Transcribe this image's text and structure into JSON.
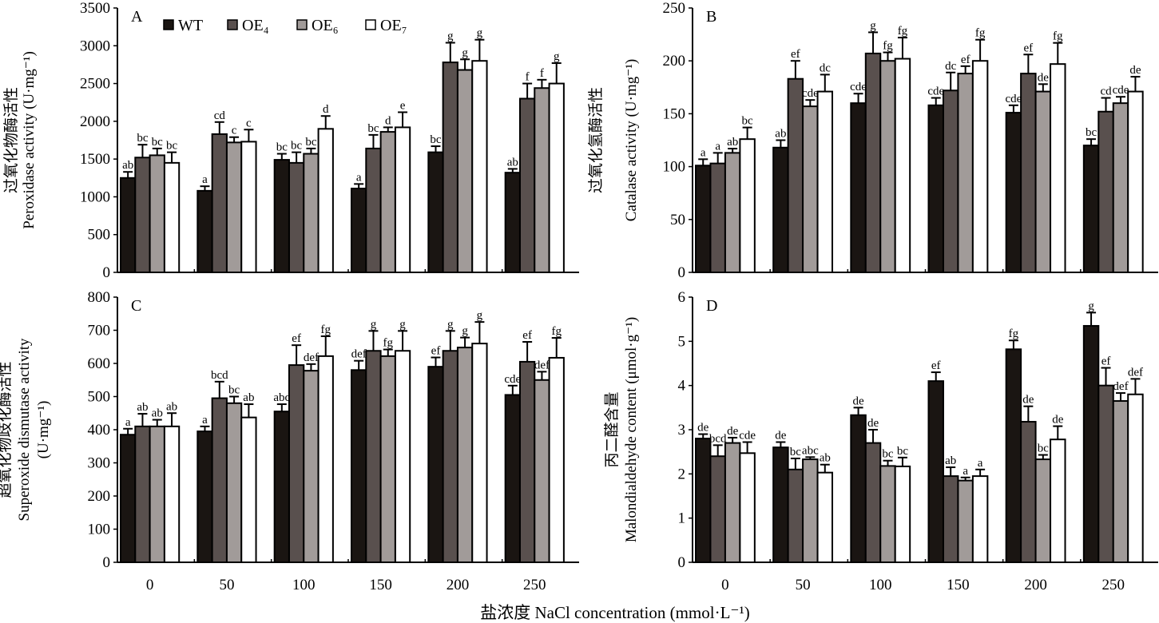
{
  "chart_data": {
    "x_title": "盐浓度 NaCl concentration (mmol·L⁻¹)",
    "legend": {
      "placement": "top-left (panel A)"
    },
    "panels": [
      {
        "id": "A",
        "type": "bar",
        "ylabel_cn": "过氧化物酶活性",
        "ylabel_en": "Peroxidase activity (U·mg⁻¹)",
        "ylim": [
          0,
          3500
        ],
        "yticks": [
          0,
          500,
          1000,
          1500,
          2000,
          2500,
          3000,
          3500
        ],
        "categories": [
          "0",
          "50",
          "100",
          "150",
          "200",
          "250"
        ],
        "series": [
          {
            "name": "WT",
            "color": "#1a1512",
            "values": [
              1250,
              1080,
              1490,
              1110,
              1590,
              1320
            ],
            "errors": [
              80,
              60,
              80,
              60,
              80,
              50
            ],
            "letters": [
              "ab",
              "a",
              "bc",
              "a",
              "bc",
              "ab"
            ]
          },
          {
            "name": "OE₄",
            "color": "#59504e",
            "values": [
              1520,
              1830,
              1450,
              1640,
              2780,
              2300
            ],
            "errors": [
              170,
              160,
              140,
              180,
              260,
              200
            ],
            "letters": [
              "bc",
              "cd",
              "bc",
              "bc",
              "g",
              "f"
            ]
          },
          {
            "name": "OE₆",
            "color": "#a19b99",
            "values": [
              1550,
              1720,
              1570,
              1860,
              2680,
              2440
            ],
            "errors": [
              90,
              70,
              70,
              60,
              140,
              110
            ],
            "letters": [
              "bc",
              "c",
              "bc",
              "d",
              "g",
              "f"
            ]
          },
          {
            "name": "OE₇",
            "color": "#ffffff",
            "values": [
              1450,
              1730,
              1900,
              1920,
              2800,
              2500
            ],
            "errors": [
              140,
              160,
              170,
              200,
              280,
              270
            ],
            "letters": [
              "bc",
              "c",
              "d",
              "e",
              "g",
              "g"
            ]
          }
        ]
      },
      {
        "id": "B",
        "type": "bar",
        "ylabel_cn": "过氧化氢酶活性",
        "ylabel_en": "Catalase activity (U·mg⁻¹)",
        "ylim": [
          0,
          250
        ],
        "yticks": [
          0,
          50,
          100,
          150,
          200,
          250
        ],
        "categories": [
          "0",
          "50",
          "100",
          "150",
          "200",
          "250"
        ],
        "series": [
          {
            "name": "WT",
            "color": "#1a1512",
            "values": [
              101,
              118,
              160,
              158,
              151,
              120
            ],
            "errors": [
              6,
              7,
              9,
              7,
              7,
              6
            ],
            "letters": [
              "a",
              "ab",
              "cde",
              "cde",
              "cde",
              "bc"
            ]
          },
          {
            "name": "OE₄",
            "color": "#59504e",
            "values": [
              103,
              183,
              207,
              172,
              188,
              152
            ],
            "errors": [
              10,
              17,
              20,
              17,
              18,
              13
            ],
            "letters": [
              "a",
              "ef",
              "g",
              "dc",
              "ef",
              "cd"
            ]
          },
          {
            "name": "OE₆",
            "color": "#a19b99",
            "values": [
              113,
              157,
              200,
              188,
              171,
              160
            ],
            "errors": [
              4,
              6,
              8,
              7,
              7,
              6
            ],
            "letters": [
              "ab",
              "cde",
              "fg",
              "ef",
              "de",
              "cde"
            ]
          },
          {
            "name": "OE₇",
            "color": "#ffffff",
            "values": [
              126,
              171,
              202,
              200,
              197,
              171
            ],
            "errors": [
              11,
              16,
              20,
              20,
              20,
              14
            ],
            "letters": [
              "bc",
              "dc",
              "fg",
              "fg",
              "fg",
              "de"
            ]
          }
        ]
      },
      {
        "id": "C",
        "type": "bar",
        "ylabel_cn": "超氧化物歧化酶活性",
        "ylabel_en": "Superoxide dismutase activity",
        "ylabel_unit": "(U·mg⁻¹)",
        "ylim": [
          0,
          800
        ],
        "yticks": [
          0,
          100,
          200,
          300,
          400,
          500,
          600,
          700,
          800
        ],
        "categories": [
          "0",
          "50",
          "100",
          "150",
          "200",
          "250"
        ],
        "series": [
          {
            "name": "WT",
            "color": "#1a1512",
            "values": [
              385,
              395,
              455,
              580,
              590,
              505
            ],
            "errors": [
              18,
              15,
              22,
              28,
              28,
              28
            ],
            "letters": [
              "a",
              "a",
              "abc",
              "def",
              "ef",
              "cde"
            ]
          },
          {
            "name": "OE₄",
            "color": "#59504e",
            "values": [
              410,
              495,
              595,
              638,
              638,
              605
            ],
            "errors": [
              38,
              50,
              60,
              60,
              60,
              60
            ],
            "letters": [
              "ab",
              "bcd",
              "ef",
              "g",
              "g",
              "ef"
            ]
          },
          {
            "name": "OE₆",
            "color": "#a19b99",
            "values": [
              410,
              480,
              578,
              622,
              648,
              550
            ],
            "errors": [
              20,
              20,
              20,
              20,
              30,
              25
            ],
            "letters": [
              "ab",
              "bc",
              "def",
              "fg",
              "g",
              "def"
            ]
          },
          {
            "name": "OE₇",
            "color": "#ffffff",
            "values": [
              410,
              437,
              622,
              638,
              660,
              617
            ],
            "errors": [
              40,
              40,
              60,
              60,
              65,
              60
            ],
            "letters": [
              "ab",
              "ab",
              "fg",
              "g",
              "g",
              "fg"
            ]
          }
        ]
      },
      {
        "id": "D",
        "type": "bar",
        "ylabel_cn": "丙二醛含量",
        "ylabel_en": "Malondialdehyde content (μmol·g⁻¹)",
        "ylim": [
          0,
          6
        ],
        "yticks": [
          0,
          1,
          2,
          3,
          4,
          5,
          6
        ],
        "categories": [
          "0",
          "50",
          "100",
          "150",
          "200",
          "250"
        ],
        "series": [
          {
            "name": "WT",
            "color": "#1a1512",
            "values": [
              2.8,
              2.6,
              3.33,
              4.1,
              4.82,
              5.35
            ],
            "errors": [
              0.1,
              0.12,
              0.17,
              0.2,
              0.2,
              0.3
            ],
            "letters": [
              "de",
              "de",
              "de",
              "ef",
              "fg",
              "g"
            ]
          },
          {
            "name": "OE₄",
            "color": "#59504e",
            "values": [
              2.4,
              2.1,
              2.7,
              1.95,
              3.18,
              4.0
            ],
            "errors": [
              0.25,
              0.25,
              0.3,
              0.2,
              0.35,
              0.4
            ],
            "letters": [
              "bcd",
              "bc",
              "de",
              "ab",
              "de",
              "ef"
            ]
          },
          {
            "name": "OE₆",
            "color": "#a19b99",
            "values": [
              2.7,
              2.33,
              2.18,
              1.85,
              2.33,
              3.65
            ],
            "errors": [
              0.12,
              0.05,
              0.12,
              0.07,
              0.1,
              0.18
            ],
            "letters": [
              "de",
              "abc",
              "bc",
              "a",
              "bc",
              "def"
            ]
          },
          {
            "name": "OE₇",
            "color": "#ffffff",
            "values": [
              2.47,
              2.03,
              2.17,
              1.95,
              2.78,
              3.8
            ],
            "errors": [
              0.25,
              0.18,
              0.2,
              0.15,
              0.3,
              0.35
            ],
            "letters": [
              "cde",
              "ab",
              "bc",
              "a",
              "de",
              "def"
            ]
          }
        ]
      }
    ]
  }
}
